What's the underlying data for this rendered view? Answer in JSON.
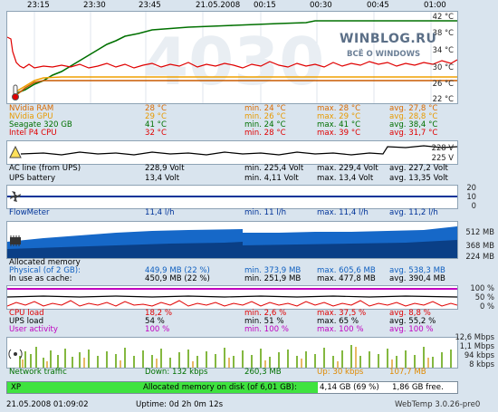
{
  "time_axis": [
    "23:15",
    "23:30",
    "23:45",
    "21.05.2008",
    "00:15",
    "00:30",
    "00:45",
    "01:00"
  ],
  "temperature": {
    "axis": [
      "42 °C",
      "38 °C",
      "34 °C",
      "30 °C",
      "26 °C",
      "22 °C"
    ],
    "rows": [
      {
        "name": "NVidia RAM",
        "cur": "28 °C",
        "min": "min. 24 °C",
        "max": "max. 28 °C",
        "avg": "avg. 27,8 °C",
        "color": "#d96a00"
      },
      {
        "name": "NVidia GPU",
        "cur": "29 °C",
        "min": "min. 26 °C",
        "max": "max. 29 °C",
        "avg": "avg. 28,8 °C",
        "color": "#f0a000"
      },
      {
        "name": "Seagate 320 GB",
        "cur": "41 °C",
        "min": "min. 24 °C",
        "max": "max. 41 °C",
        "avg": "avg. 38,4 °C",
        "color": "#007000"
      },
      {
        "name": "Intel P4 CPU",
        "cur": "32 °C",
        "min": "min. 28 °C",
        "max": "max. 39 °C",
        "avg": "avg. 31,7 °C",
        "color": "#e00000"
      }
    ]
  },
  "voltage": {
    "axis": [
      "228 V",
      "225 V"
    ],
    "rows": [
      {
        "name": "AC line (from UPS)",
        "cur": "228,9 Volt",
        "min": "min. 225,4 Volt",
        "max": "max. 229,4 Volt",
        "avg": "avg. 227,2 Volt",
        "color": "#000000"
      },
      {
        "name": "UPS battery",
        "cur": "13,4 Volt",
        "min": "min. 4,11 Volt",
        "max": "max. 13,4 Volt",
        "avg": "avg. 13,35 Volt",
        "color": "#000000"
      }
    ]
  },
  "flow": {
    "axis": [
      "20",
      "10",
      "0"
    ],
    "rows": [
      {
        "name": "FlowMeter",
        "cur": "11,4 l/h",
        "min": "min. 11 l/h",
        "max": "max. 11,4 l/h",
        "avg": "avg. 11,2 l/h",
        "color": "#003399"
      }
    ]
  },
  "memory": {
    "axis": [
      "512 MB",
      "368 MB",
      "224 MB"
    ],
    "rows": [
      {
        "name": "Allocated memory",
        "cur": "",
        "min": "",
        "max": "",
        "avg": "",
        "color": "#000000"
      },
      {
        "name": "Physical (of 2 GB):",
        "cur": "449,9 MB (22 %)",
        "min": "min. 373,9 MB",
        "max": "max. 605,6 MB",
        "avg": "avg. 538,3 MB",
        "color": "#1060c0"
      },
      {
        "name": "In use as cache:",
        "cur": "450,9 MB (22 %)",
        "min": "min. 251,9 MB",
        "max": "max. 477,8 MB",
        "avg": "avg. 390,4 MB",
        "color": "#000000"
      }
    ]
  },
  "load": {
    "axis": [
      "100 %",
      "50 %",
      "0 %"
    ],
    "rows": [
      {
        "name": "CPU load",
        "cur": "18,2 %",
        "min": "min. 2,6 %",
        "max": "max. 37,5 %",
        "avg": "avg. 8,8 %",
        "color": "#e00000"
      },
      {
        "name": "UPS load",
        "cur": "54 %",
        "min": "min. 51 %",
        "max": "max. 65 %",
        "avg": "avg. 55,2 %",
        "color": "#000000"
      },
      {
        "name": "User activity",
        "cur": "100 %",
        "min": "min. 100 %",
        "max": "max. 100 %",
        "avg": "avg. 100 %",
        "color": "#c000c0"
      }
    ]
  },
  "network": {
    "axis": [
      "12,6 Mbps",
      "1,1 Mbps",
      "94 kbps",
      "8 kbps"
    ],
    "label": "Network traffic",
    "down": "Down: 132 kbps",
    "down_total": "260,3 MB",
    "up": "Up: 30 kbps",
    "up_total": "107,7 MB"
  },
  "disk": {
    "name": "XP",
    "label": "Allocated memory on disk (of 6,01 GB):",
    "value": "4,14 GB (69 %)",
    "free": "1,86 GB free.",
    "fill_fraction": 0.69
  },
  "status": {
    "datetime": "21.05.2008 01:09:02",
    "uptime": "Uptime: 0d 2h 0m 12s",
    "version": "WebTemp 3.0.26-pre0"
  },
  "watermark": {
    "title": "WINBLOG.RU",
    "subtitle": "ВСЁ О WINDOWS"
  }
}
